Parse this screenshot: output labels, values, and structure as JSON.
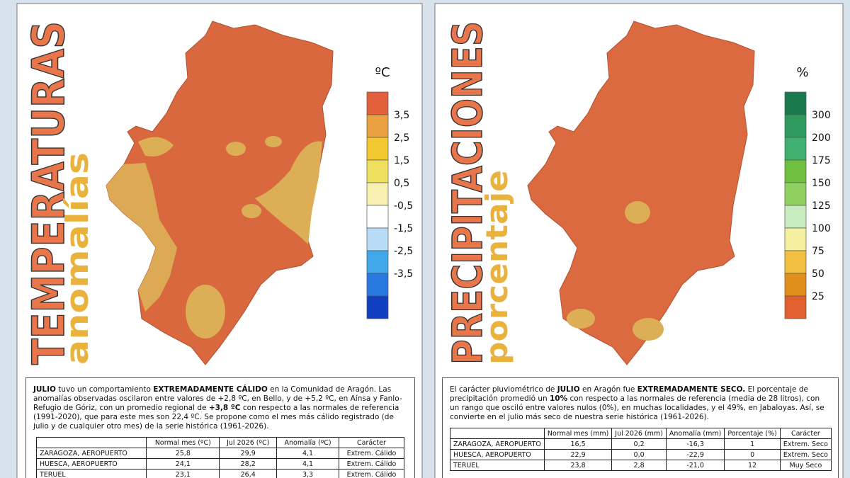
{
  "left_panel": {
    "title": "TEMPERATURAS",
    "subtitle": "anomalías",
    "legend": {
      "unit": "ºC",
      "labels": [
        "3,5",
        "2,5",
        "1,5",
        "0,5",
        "-0,5",
        "-1,5",
        "-2,5",
        "-3,5"
      ],
      "colors": [
        "#e2603c",
        "#e9a040",
        "#f2c830",
        "#f0e060",
        "#f7f0b0",
        "#ffffff",
        "#b8dcf5",
        "#40a8e8",
        "#2878e0",
        "#1040c0"
      ]
    },
    "description": [
      {
        "text": "JULIO",
        "bold": true
      },
      {
        "text": " tuvo un comportamiento ",
        "bold": false
      },
      {
        "text": "EXTREMADAMENTE CÁLIDO",
        "bold": true
      },
      {
        "text": " en la Comunidad de Aragón. Las anomalías observadas oscilaron entre valores de +2,8 ºC, en Bello, y de +5,2 ºC, en Aínsa y Fanlo-Refugio de Góriz, con un promedio regional de ",
        "bold": false
      },
      {
        "text": "+3,8 ºC",
        "bold": true
      },
      {
        "text": " con respecto a las normales de referencia (1991-2020), que para este mes son 22,4 ºC. Se propone como el mes más cálido registrado (de julio y de cualquier otro mes) de la serie histórica (1961-2026).",
        "bold": false
      }
    ],
    "table": {
      "header": [
        "Normal mes (ºC)",
        "Jul 2026 (ºC)",
        "Anomalía (ºC)",
        "Carácter"
      ],
      "rows": [
        [
          "ZARAGOZA, AEROPUERTO",
          "25,8",
          "29,9",
          "4,1",
          "Extrem. Cálido"
        ],
        [
          "HUESCA, AEROPUERTO",
          "24,1",
          "28,2",
          "4,1",
          "Extrem. Cálido"
        ],
        [
          "TERUEL",
          "23,1",
          "26,4",
          "3,3",
          "Extrem. Cálido"
        ]
      ]
    }
  },
  "right_panel": {
    "title": "PRECIPITACIONES",
    "subtitle": "porcentaje",
    "legend": {
      "unit": "%",
      "labels": [
        "300",
        "200",
        "175",
        "150",
        "125",
        "100",
        "75",
        "50",
        "25"
      ],
      "colors": [
        "#1a7a4e",
        "#2e9a5e",
        "#40b070",
        "#70c040",
        "#90d060",
        "#c8ecc0",
        "#f5f0a0",
        "#f2c040",
        "#e0901a",
        "#e06030"
      ]
    },
    "description": [
      {
        "text": "El carácter pluviométrico de ",
        "bold": false
      },
      {
        "text": "JULIO",
        "bold": true
      },
      {
        "text": " en Aragón fue ",
        "bold": false
      },
      {
        "text": "EXTREMADAMENTE SECO.",
        "bold": true
      },
      {
        "text": " El porcentaje de precipitación promedió un ",
        "bold": false
      },
      {
        "text": "10%",
        "bold": true
      },
      {
        "text": " con respecto a las normales de referencia (media de 28 litros), con un rango que osciló entre valores nulos (0%), en muchas localidades, y el 49%, en Jabaloyas. Así, se convierte en el julio más seco de nuestra serie histórica (1961-2026).",
        "bold": false
      }
    ],
    "table": {
      "header": [
        "Normal mes (mm)",
        "Jul 2026 (mm)",
        "Anomalía (mm)",
        "Porcentaje (%)",
        "Carácter"
      ],
      "rows": [
        [
          "ZARAGOZA, AEROPUERTO",
          "16,5",
          "0,2",
          "-16,3",
          "1",
          "Extrem. Seco"
        ],
        [
          "HUESCA, AEROPUERTO",
          "22,9",
          "0,0",
          "-22,9",
          "0",
          "Extrem. Seco"
        ],
        [
          "TERUEL",
          "23,8",
          "2,8",
          "-21,0",
          "12",
          "Muy Seco"
        ]
      ]
    }
  }
}
